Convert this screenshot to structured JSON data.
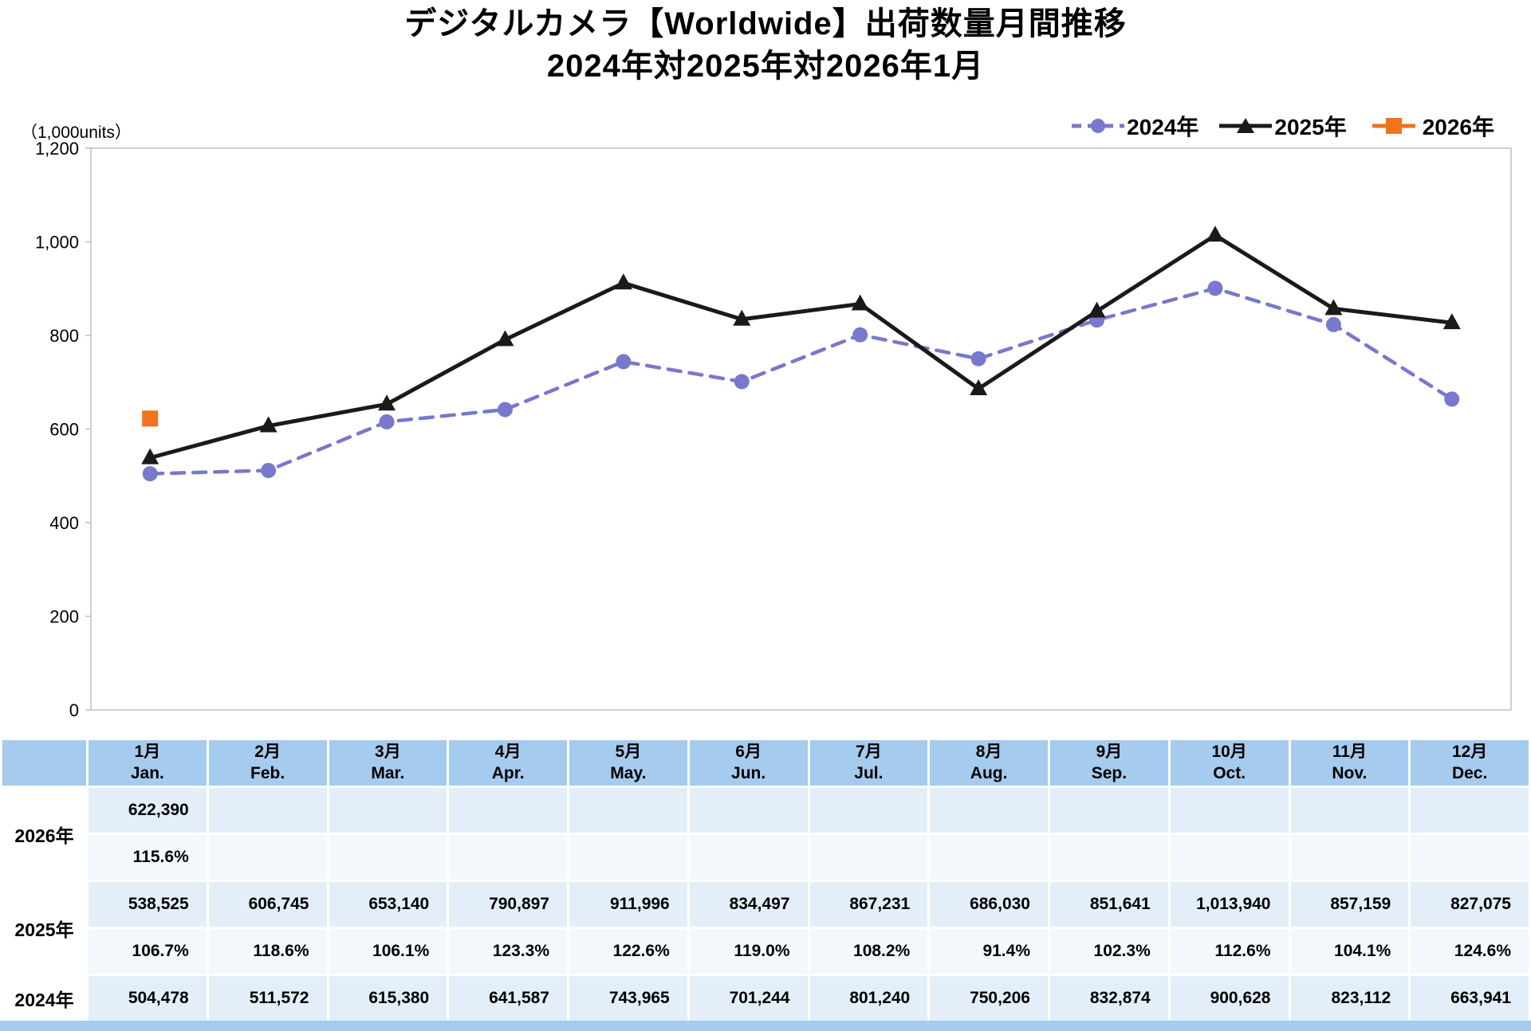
{
  "title": {
    "line1": "デジタルカメラ【Worldwide】出荷数量月間推移",
    "line2": "2024年対2025年対2026年1月"
  },
  "colors": {
    "accent_2024": "#7878CC",
    "accent_2025": "#1A1A1A",
    "accent_2026": "#F0731E",
    "table_header_bg": "#A5CBEE",
    "table_row_shaded": "#E3EEF9",
    "table_row_light": "#F3F8FD",
    "axis_line": "#BFBFBF"
  },
  "chart_data": {
    "type": "line",
    "title": "デジタルカメラ【Worldwide】出荷数量月間推移 2024年対2025年対2026年1月",
    "unit_label": "（1,000units）",
    "xlabel": "",
    "ylabel": "(1,000units)",
    "categories": [
      "1月",
      "2月",
      "3月",
      "4月",
      "5月",
      "6月",
      "7月",
      "8月",
      "9月",
      "10月",
      "11月",
      "12月"
    ],
    "ylim": [
      0,
      1200
    ],
    "unit_divisor": 1000,
    "grid": false,
    "legend_position": "top-right",
    "yticks": [
      {
        "value": 0,
        "label": "0"
      },
      {
        "value": 200,
        "label": "200"
      },
      {
        "value": 400,
        "label": "400"
      },
      {
        "value": 600,
        "label": "600"
      },
      {
        "value": 800,
        "label": "800"
      },
      {
        "value": 1000,
        "label": "1,000"
      },
      {
        "value": 1200,
        "label": "1,200"
      }
    ],
    "series": [
      {
        "name": "2024年",
        "marker": "circle",
        "line": "dashed",
        "values": [
          504478,
          511572,
          615380,
          641587,
          743965,
          701244,
          801240,
          750206,
          832874,
          900628,
          823112,
          663941
        ]
      },
      {
        "name": "2025年",
        "marker": "triangle",
        "line": "solid",
        "values": [
          538525,
          606745,
          653140,
          790897,
          911996,
          834497,
          867231,
          686030,
          851641,
          1013940,
          857159,
          827075
        ]
      },
      {
        "name": "2026年",
        "marker": "square",
        "line": "solid",
        "values": [
          622390,
          null,
          null,
          null,
          null,
          null,
          null,
          null,
          null,
          null,
          null,
          null
        ]
      }
    ]
  },
  "table": {
    "corner": "",
    "months": [
      {
        "jp": "1月",
        "en": "Jan."
      },
      {
        "jp": "2月",
        "en": "Feb."
      },
      {
        "jp": "3月",
        "en": "Mar."
      },
      {
        "jp": "4月",
        "en": "Apr."
      },
      {
        "jp": "5月",
        "en": "May."
      },
      {
        "jp": "6月",
        "en": "Jun."
      },
      {
        "jp": "7月",
        "en": "Jul."
      },
      {
        "jp": "8月",
        "en": "Aug."
      },
      {
        "jp": "9月",
        "en": "Sep."
      },
      {
        "jp": "10月",
        "en": "Oct."
      },
      {
        "jp": "11月",
        "en": "Nov."
      },
      {
        "jp": "12月",
        "en": "Dec."
      }
    ],
    "rows": [
      {
        "label": "2026年",
        "values": [
          "622,390",
          "",
          "",
          "",
          "",
          "",
          "",
          "",
          "",
          "",
          "",
          ""
        ],
        "pcts": [
          "115.6%",
          "",
          "",
          "",
          "",
          "",
          "",
          "",
          "",
          "",
          "",
          ""
        ]
      },
      {
        "label": "2025年",
        "values": [
          "538,525",
          "606,745",
          "653,140",
          "790,897",
          "911,996",
          "834,497",
          "867,231",
          "686,030",
          "851,641",
          "1,013,940",
          "857,159",
          "827,075"
        ],
        "pcts": [
          "106.7%",
          "118.6%",
          "106.1%",
          "123.3%",
          "122.6%",
          "119.0%",
          "108.2%",
          "91.4%",
          "102.3%",
          "112.6%",
          "104.1%",
          "124.6%"
        ]
      },
      {
        "label": "2024年",
        "values": [
          "504,478",
          "511,572",
          "615,380",
          "641,587",
          "743,965",
          "701,244",
          "801,240",
          "750,206",
          "832,874",
          "900,628",
          "823,112",
          "663,941"
        ],
        "pcts": null
      }
    ]
  }
}
